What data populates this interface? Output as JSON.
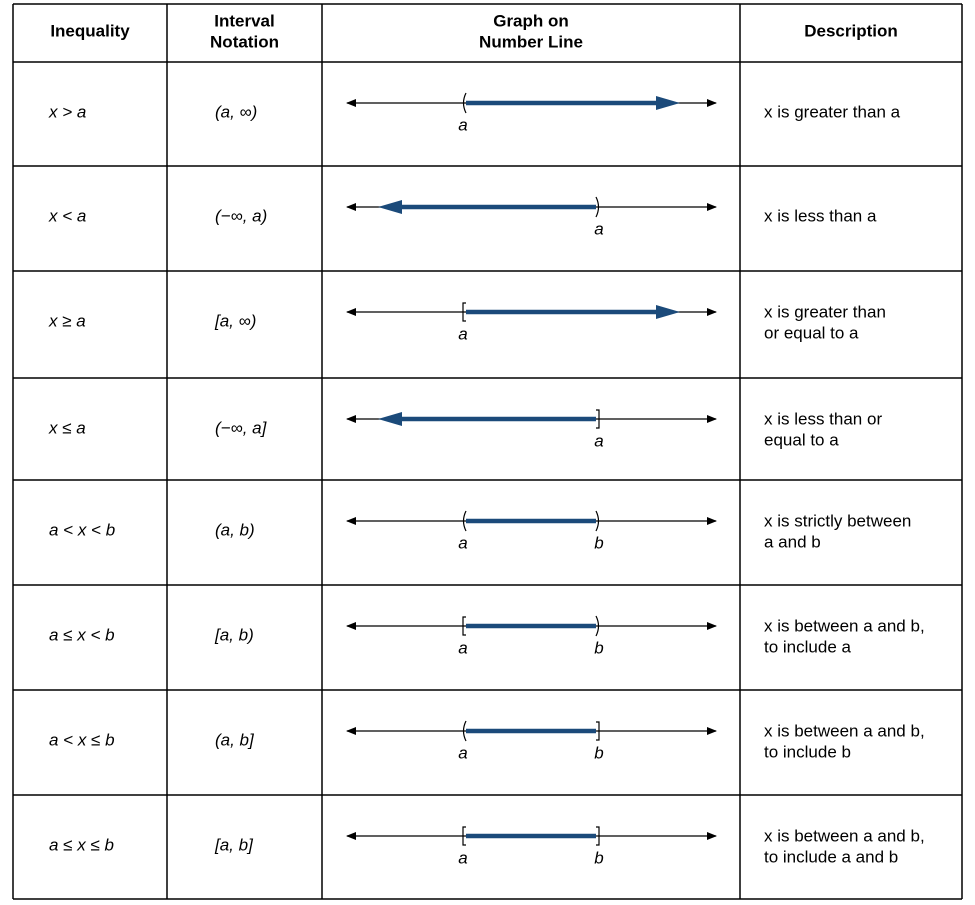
{
  "header": [
    [
      "Inequality"
    ],
    [
      "Interval",
      "Notation"
    ],
    [
      "Graph on",
      "Number Line"
    ],
    [
      "Description"
    ]
  ],
  "rows": [
    {
      "inequality": "x > a",
      "interval": "(a, ∞)",
      "graph": {
        "from": {
          "label": "a",
          "closed": false
        },
        "to": null
      },
      "description": [
        "x is greater than a"
      ]
    },
    {
      "inequality": "x < a",
      "interval": "(−∞, a)",
      "graph": {
        "from": null,
        "to": {
          "label": "a",
          "closed": false
        }
      },
      "description": [
        "x is less than a"
      ]
    },
    {
      "inequality": "x ≥ a",
      "interval": "[a, ∞)",
      "graph": {
        "from": {
          "label": "a",
          "closed": true
        },
        "to": null
      },
      "description": [
        "x is greater than",
        "or equal to a"
      ]
    },
    {
      "inequality": "x ≤ a",
      "interval": "(−∞, a]",
      "graph": {
        "from": null,
        "to": {
          "label": "a",
          "closed": true
        }
      },
      "description": [
        "x is less than or",
        "equal to a"
      ]
    },
    {
      "inequality": "a < x < b",
      "interval": "(a, b)",
      "graph": {
        "from": {
          "label": "a",
          "closed": false
        },
        "to": {
          "label": "b",
          "closed": false
        }
      },
      "description": [
        "x is strictly between",
        "a and b"
      ]
    },
    {
      "inequality": "a ≤ x < b",
      "interval": "[a, b)",
      "graph": {
        "from": {
          "label": "a",
          "closed": true
        },
        "to": {
          "label": "b",
          "closed": false
        }
      },
      "description": [
        "x is between a and b,",
        "to include a"
      ]
    },
    {
      "inequality": "a < x ≤ b",
      "interval": "(a, b]",
      "graph": {
        "from": {
          "label": "a",
          "closed": false
        },
        "to": {
          "label": "b",
          "closed": true
        }
      },
      "description": [
        "x is between a and b,",
        "to include b"
      ]
    },
    {
      "inequality": "a ≤ x ≤ b",
      "interval": "[a, b]",
      "graph": {
        "from": {
          "label": "a",
          "closed": true
        },
        "to": {
          "label": "b",
          "closed": true
        }
      },
      "description": [
        "x is between a and b,",
        "to include a and b"
      ]
    }
  ]
}
